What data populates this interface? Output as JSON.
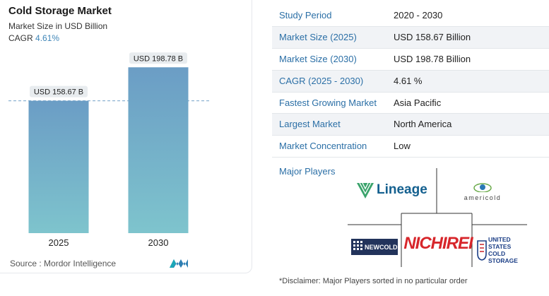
{
  "chart_data": {
    "type": "bar",
    "title": "Cold Storage Market",
    "subtitle": "Market Size in USD Billion",
    "cagr_label": "CAGR",
    "cagr_value": "4.61%",
    "categories": [
      "2025",
      "2030"
    ],
    "values": [
      158.67,
      198.78
    ],
    "data_labels": [
      "USD 158.67 B",
      "USD 198.78 B"
    ],
    "reference_line": 158.67,
    "ylim": [
      0,
      200
    ],
    "grid": false,
    "colors": {
      "bar_top": "#6b9dc5",
      "bar_bottom": "#7ec4cd",
      "label_bg": "#e8ecef",
      "ref_line": "#8fb4d3"
    }
  },
  "source": "Source :  Mordor Intelligence",
  "table": [
    {
      "key": "Study Period",
      "value": "2020 - 2030"
    },
    {
      "key": "Market Size (2025)",
      "value": "USD 158.67 Billion"
    },
    {
      "key": "Market Size (2030)",
      "value": "USD 198.78 Billion"
    },
    {
      "key": "CAGR (2025 - 2030)",
      "value": "4.61 %"
    },
    {
      "key": "Fastest Growing Market",
      "value": "Asia Pacific"
    },
    {
      "key": "Largest Market",
      "value": "North America"
    },
    {
      "key": "Market Concentration",
      "value": "Low"
    }
  ],
  "major_players": {
    "label": "Major Players",
    "players": [
      "Lineage",
      "americold",
      "NEWCOLD",
      "NICHIREI",
      "UNITED STATES COLD STORAGE"
    ]
  },
  "disclaimer": "*Disclaimer: Major Players sorted in no particular order",
  "colors": {
    "accent": "#2b6fa6",
    "row_shade": "#f1f3f6"
  }
}
